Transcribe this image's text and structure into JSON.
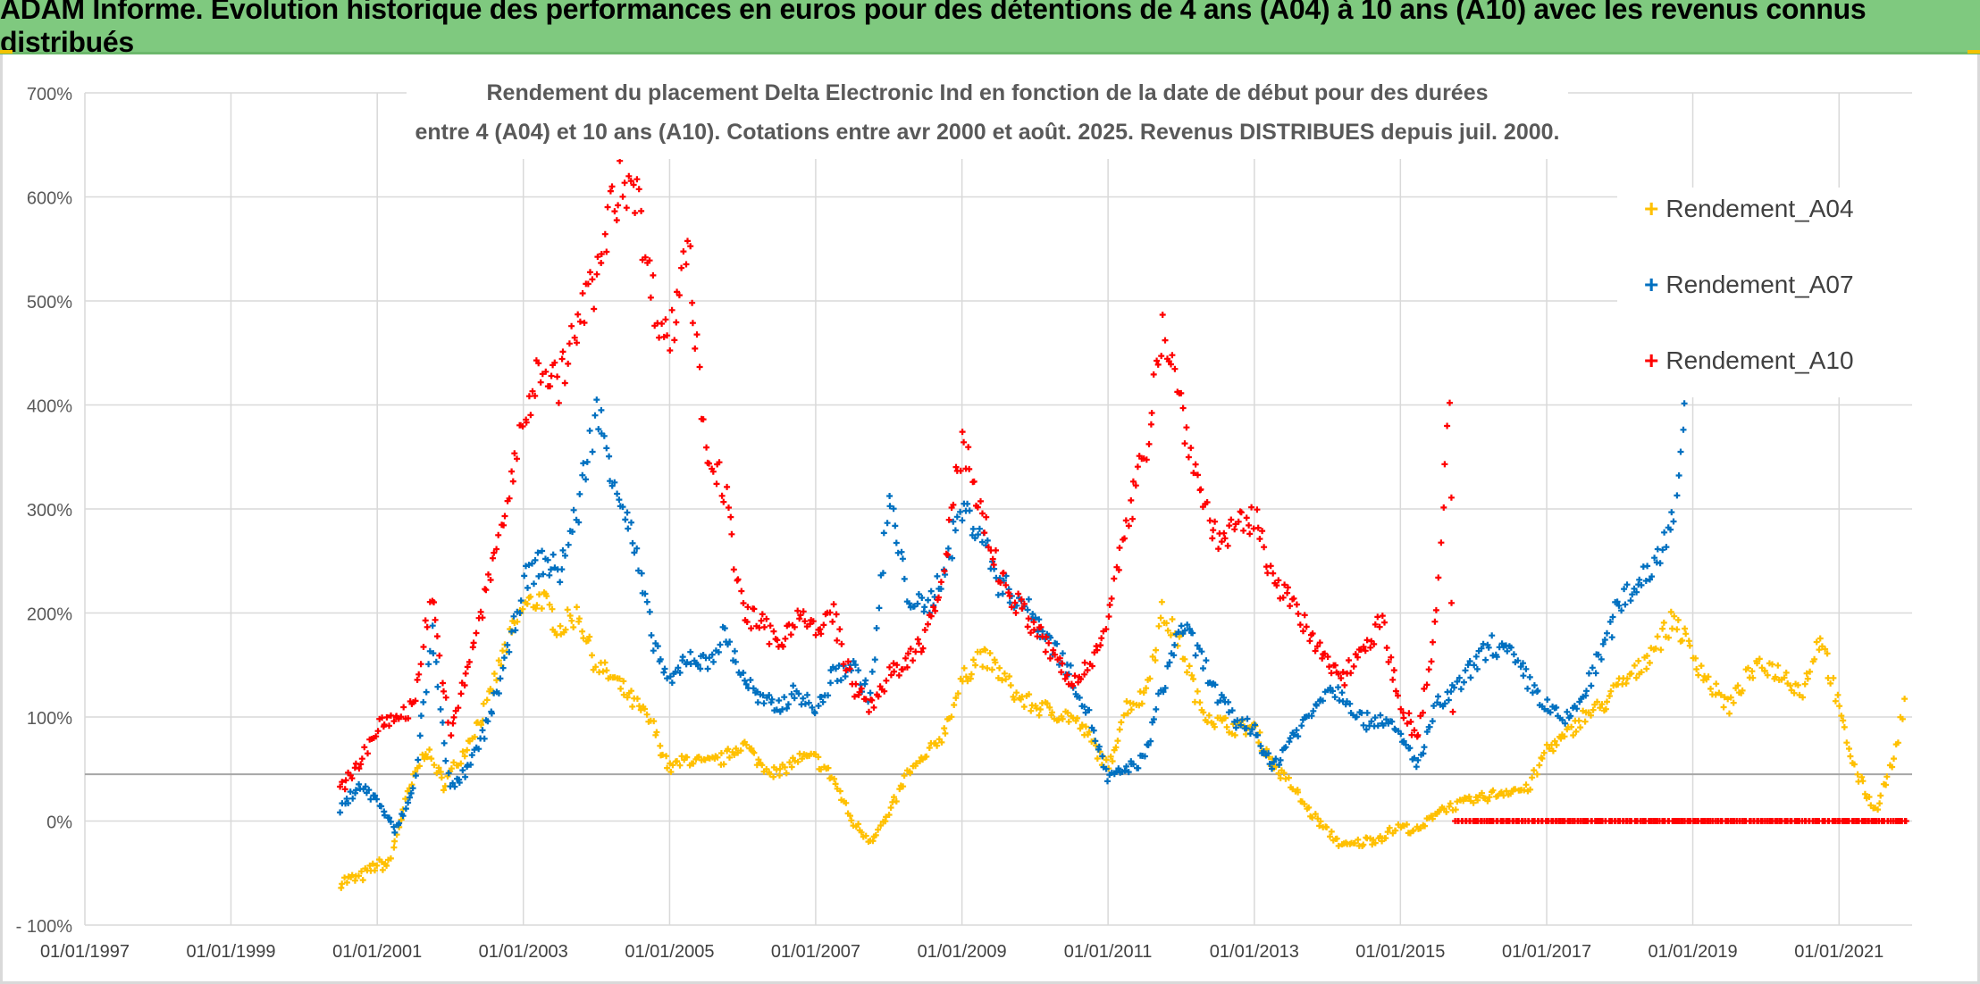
{
  "header": {
    "title": "ADAM Informe. Evolution historique des performances en euros pour des détentions de 4 ans (A04) à 10 ans (A10) avec les revenus connus distribués"
  },
  "chart_data": {
    "type": "scatter",
    "title_line1": "Rendement du placement Delta Electronic Ind  en fonction de la date de début pour des durées",
    "title_line2": "entre 4 (A04) et 10 ans (A10). Cotations entre avr 2000 et août. 2025. Revenus DISTRIBUES depuis juil. 2000.",
    "y_ticks": [
      "700%",
      "600%",
      "500%",
      "400%",
      "300%",
      "200%",
      "100%",
      "0%",
      "- 100%"
    ],
    "y_tick_values": [
      700,
      600,
      500,
      400,
      300,
      200,
      100,
      0,
      -100
    ],
    "x_ticks": [
      "01/01/1997",
      "01/01/1999",
      "01/01/2001",
      "01/01/2003",
      "01/01/2005",
      "01/01/2007",
      "01/01/2009",
      "01/01/2011",
      "01/01/2013",
      "01/01/2015",
      "01/01/2017",
      "01/01/2019",
      "01/01/2021"
    ],
    "xlim": [
      "1997-01-01",
      "2022-01-01"
    ],
    "ylim": [
      -100,
      700
    ],
    "grid": true,
    "reference_line_y": 45,
    "legend_position": "top-right",
    "series": [
      {
        "name": "Rendement_A04",
        "color": "#ffc000",
        "points": [
          [
            "2000-07-01",
            -58
          ],
          [
            "2000-10-01",
            -55
          ],
          [
            "2001-01-01",
            -42
          ],
          [
            "2001-03-01",
            -42
          ],
          [
            "2001-06-01",
            25
          ],
          [
            "2001-09-01",
            70
          ],
          [
            "2001-12-01",
            35
          ],
          [
            "2002-03-01",
            65
          ],
          [
            "2002-07-01",
            110
          ],
          [
            "2002-10-01",
            165
          ],
          [
            "2003-01-01",
            205
          ],
          [
            "2003-04-01",
            215
          ],
          [
            "2003-07-01",
            185
          ],
          [
            "2003-10-01",
            200
          ],
          [
            "2004-01-01",
            150
          ],
          [
            "2004-04-01",
            135
          ],
          [
            "2004-07-01",
            115
          ],
          [
            "2004-10-01",
            95
          ],
          [
            "2005-01-01",
            50
          ],
          [
            "2005-04-01",
            60
          ],
          [
            "2005-07-01",
            55
          ],
          [
            "2005-10-01",
            60
          ],
          [
            "2006-01-01",
            75
          ],
          [
            "2006-04-01",
            55
          ],
          [
            "2006-07-01",
            45
          ],
          [
            "2006-10-01",
            60
          ],
          [
            "2007-01-01",
            60
          ],
          [
            "2007-04-01",
            40
          ],
          [
            "2007-07-01",
            0
          ],
          [
            "2007-10-01",
            -18
          ],
          [
            "2008-01-01",
            5
          ],
          [
            "2008-04-01",
            45
          ],
          [
            "2008-07-01",
            60
          ],
          [
            "2008-10-01",
            85
          ],
          [
            "2009-01-01",
            135
          ],
          [
            "2009-04-01",
            160
          ],
          [
            "2009-07-01",
            145
          ],
          [
            "2009-10-01",
            120
          ],
          [
            "2010-01-01",
            110
          ],
          [
            "2010-04-01",
            105
          ],
          [
            "2010-07-01",
            100
          ],
          [
            "2010-10-01",
            80
          ],
          [
            "2011-01-01",
            50
          ],
          [
            "2011-04-01",
            110
          ],
          [
            "2011-07-01",
            120
          ],
          [
            "2011-10-01",
            200
          ],
          [
            "2012-01-01",
            170
          ],
          [
            "2012-04-01",
            110
          ],
          [
            "2012-07-01",
            95
          ],
          [
            "2012-10-01",
            90
          ],
          [
            "2013-01-01",
            90
          ],
          [
            "2013-04-01",
            55
          ],
          [
            "2013-07-01",
            35
          ],
          [
            "2013-10-01",
            10
          ],
          [
            "2014-01-01",
            -10
          ],
          [
            "2014-04-01",
            -25
          ],
          [
            "2014-07-01",
            -20
          ],
          [
            "2014-10-01",
            -15
          ],
          [
            "2015-01-01",
            -5
          ],
          [
            "2015-04-01",
            -10
          ],
          [
            "2015-07-01",
            10
          ],
          [
            "2015-10-01",
            15
          ],
          [
            "2016-01-01",
            20
          ],
          [
            "2016-04-01",
            25
          ],
          [
            "2016-07-01",
            30
          ],
          [
            "2016-10-01",
            30
          ],
          [
            "2017-01-01",
            70
          ],
          [
            "2017-04-01",
            80
          ],
          [
            "2017-07-01",
            100
          ],
          [
            "2017-10-01",
            110
          ],
          [
            "2018-01-01",
            130
          ],
          [
            "2018-04-01",
            145
          ],
          [
            "2018-07-01",
            170
          ],
          [
            "2018-10-01",
            195
          ],
          [
            "2019-01-01",
            160
          ],
          [
            "2019-04-01",
            130
          ],
          [
            "2019-07-01",
            110
          ],
          [
            "2019-10-01",
            140
          ],
          [
            "2020-01-01",
            150
          ],
          [
            "2020-04-01",
            140
          ],
          [
            "2020-07-01",
            125
          ],
          [
            "2020-10-01",
            180
          ],
          [
            "2021-01-01",
            105
          ],
          [
            "2021-04-01",
            45
          ],
          [
            "2021-07-01",
            10
          ],
          [
            "2021-10-01",
            60
          ],
          [
            "2021-12-01",
            125
          ]
        ]
      },
      {
        "name": "Rendement_A07",
        "color": "#0070c0",
        "points": [
          [
            "2000-07-01",
            10
          ],
          [
            "2000-10-01",
            35
          ],
          [
            "2001-01-01",
            20
          ],
          [
            "2001-04-01",
            -10
          ],
          [
            "2001-07-01",
            30
          ],
          [
            "2001-10-01",
            180
          ],
          [
            "2002-01-01",
            30
          ],
          [
            "2002-04-01",
            50
          ],
          [
            "2002-07-01",
            90
          ],
          [
            "2002-10-01",
            150
          ],
          [
            "2003-01-01",
            230
          ],
          [
            "2003-04-01",
            250
          ],
          [
            "2003-07-01",
            240
          ],
          [
            "2003-10-01",
            300
          ],
          [
            "2004-01-01",
            395
          ],
          [
            "2004-04-01",
            330
          ],
          [
            "2004-07-01",
            270
          ],
          [
            "2004-10-01",
            180
          ],
          [
            "2005-01-01",
            130
          ],
          [
            "2005-04-01",
            160
          ],
          [
            "2005-07-01",
            150
          ],
          [
            "2005-10-01",
            180
          ],
          [
            "2006-01-01",
            140
          ],
          [
            "2006-04-01",
            115
          ],
          [
            "2006-07-01",
            110
          ],
          [
            "2006-10-01",
            125
          ],
          [
            "2007-01-01",
            105
          ],
          [
            "2007-04-01",
            140
          ],
          [
            "2007-07-01",
            150
          ],
          [
            "2007-10-01",
            120
          ],
          [
            "2008-01-01",
            310
          ],
          [
            "2008-04-01",
            220
          ],
          [
            "2008-07-01",
            200
          ],
          [
            "2008-10-01",
            240
          ],
          [
            "2009-01-01",
            300
          ],
          [
            "2009-04-01",
            280
          ],
          [
            "2009-07-01",
            230
          ],
          [
            "2009-10-01",
            215
          ],
          [
            "2010-01-01",
            195
          ],
          [
            "2010-04-01",
            170
          ],
          [
            "2010-07-01",
            140
          ],
          [
            "2010-10-01",
            100
          ],
          [
            "2011-01-01",
            40
          ],
          [
            "2011-04-01",
            50
          ],
          [
            "2011-07-01",
            60
          ],
          [
            "2011-10-01",
            130
          ],
          [
            "2012-01-01",
            190
          ],
          [
            "2012-04-01",
            160
          ],
          [
            "2012-07-01",
            120
          ],
          [
            "2012-10-01",
            95
          ],
          [
            "2013-01-01",
            90
          ],
          [
            "2013-04-01",
            50
          ],
          [
            "2013-07-01",
            80
          ],
          [
            "2013-10-01",
            100
          ],
          [
            "2014-01-01",
            130
          ],
          [
            "2014-04-01",
            120
          ],
          [
            "2014-07-01",
            95
          ],
          [
            "2014-10-01",
            100
          ],
          [
            "2015-01-01",
            80
          ],
          [
            "2015-04-01",
            55
          ],
          [
            "2015-07-01",
            110
          ],
          [
            "2015-10-01",
            125
          ],
          [
            "2016-01-01",
            150
          ],
          [
            "2016-04-01",
            170
          ],
          [
            "2016-07-01",
            160
          ],
          [
            "2016-10-01",
            135
          ],
          [
            "2017-01-01",
            110
          ],
          [
            "2017-04-01",
            95
          ],
          [
            "2017-07-01",
            120
          ],
          [
            "2017-10-01",
            160
          ],
          [
            "2018-01-01",
            210
          ],
          [
            "2018-04-01",
            230
          ],
          [
            "2018-07-01",
            250
          ],
          [
            "2018-10-01",
            300
          ],
          [
            "2018-12-01",
            400
          ]
        ]
      },
      {
        "name": "Rendement_A10",
        "color": "#ff0000",
        "points": [
          [
            "2000-07-01",
            30
          ],
          [
            "2000-10-01",
            55
          ],
          [
            "2001-01-01",
            90
          ],
          [
            "2001-04-01",
            100
          ],
          [
            "2001-07-01",
            110
          ],
          [
            "2001-10-01",
            220
          ],
          [
            "2002-01-01",
            80
          ],
          [
            "2002-04-01",
            150
          ],
          [
            "2002-07-01",
            220
          ],
          [
            "2002-10-01",
            300
          ],
          [
            "2003-01-01",
            380
          ],
          [
            "2003-04-01",
            440
          ],
          [
            "2003-07-01",
            420
          ],
          [
            "2003-10-01",
            480
          ],
          [
            "2004-01-01",
            520
          ],
          [
            "2004-04-01",
            600
          ],
          [
            "2004-07-01",
            625
          ],
          [
            "2004-10-01",
            510
          ],
          [
            "2005-01-01",
            460
          ],
          [
            "2005-04-01",
            560
          ],
          [
            "2005-07-01",
            360
          ],
          [
            "2005-10-01",
            320
          ],
          [
            "2006-01-01",
            200
          ],
          [
            "2006-04-01",
            190
          ],
          [
            "2006-07-01",
            170
          ],
          [
            "2006-10-01",
            200
          ],
          [
            "2007-01-01",
            180
          ],
          [
            "2007-04-01",
            200
          ],
          [
            "2007-07-01",
            130
          ],
          [
            "2007-10-01",
            110
          ],
          [
            "2008-01-01",
            140
          ],
          [
            "2008-04-01",
            150
          ],
          [
            "2008-07-01",
            180
          ],
          [
            "2008-10-01",
            230
          ],
          [
            "2009-01-01",
            370
          ],
          [
            "2009-04-01",
            300
          ],
          [
            "2009-07-01",
            240
          ],
          [
            "2009-10-01",
            210
          ],
          [
            "2010-01-01",
            185
          ],
          [
            "2010-04-01",
            160
          ],
          [
            "2010-07-01",
            130
          ],
          [
            "2010-10-01",
            150
          ],
          [
            "2011-01-01",
            200
          ],
          [
            "2011-04-01",
            280
          ],
          [
            "2011-07-01",
            350
          ],
          [
            "2011-10-01",
            480
          ],
          [
            "2012-01-01",
            400
          ],
          [
            "2012-04-01",
            320
          ],
          [
            "2012-07-01",
            270
          ],
          [
            "2012-10-01",
            280
          ],
          [
            "2013-01-01",
            290
          ],
          [
            "2013-04-01",
            240
          ],
          [
            "2013-07-01",
            210
          ],
          [
            "2013-10-01",
            180
          ],
          [
            "2014-01-01",
            150
          ],
          [
            "2014-04-01",
            140
          ],
          [
            "2014-07-01",
            170
          ],
          [
            "2014-10-01",
            190
          ],
          [
            "2015-01-01",
            110
          ],
          [
            "2015-04-01",
            80
          ],
          [
            "2015-07-01",
            200
          ],
          [
            "2015-09-01",
            400
          ],
          [
            "2015-10-01",
            0
          ],
          [
            "2016-06-01",
            0
          ],
          [
            "2017-06-01",
            0
          ],
          [
            "2018-06-01",
            0
          ],
          [
            "2019-06-01",
            0
          ],
          [
            "2020-06-01",
            0
          ],
          [
            "2021-06-01",
            0
          ],
          [
            "2021-12-15",
            0
          ]
        ]
      }
    ]
  }
}
